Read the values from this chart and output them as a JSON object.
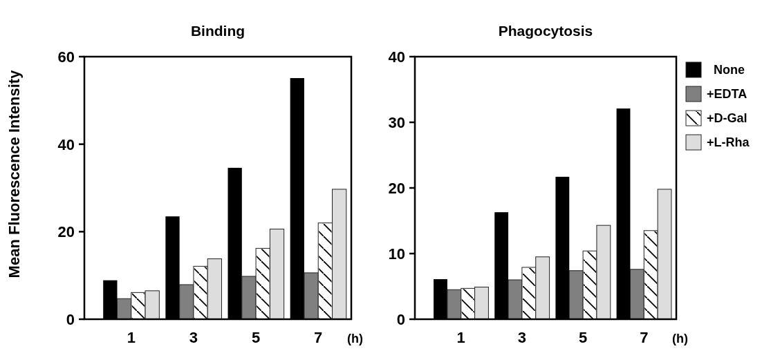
{
  "chart_data": [
    {
      "type": "bar",
      "title": "Binding",
      "ylabel": "Mean Fluorescence Intensity",
      "xlabel": "(h)",
      "categories": [
        "1",
        "3",
        "5",
        "7"
      ],
      "ylim": [
        0,
        60
      ],
      "yticks": [
        0,
        20,
        40,
        60
      ],
      "legend": false,
      "series": [
        {
          "color": "#000000",
          "values": [
            8.9,
            23.5,
            34.6,
            55.1
          ]
        },
        {
          "color": "#808080",
          "values": [
            4.7,
            7.9,
            9.8,
            10.6
          ]
        },
        {
          "color": "#ffffff",
          "values": [
            6.1,
            12.1,
            16.2,
            22.0
          ]
        },
        {
          "color": "#dddddd",
          "values": [
            6.5,
            13.8,
            20.6,
            29.7
          ]
        }
      ]
    },
    {
      "type": "bar",
      "title": "Phagocytosis",
      "xlabel": "(h)",
      "categories": [
        "1",
        "3",
        "5",
        "7"
      ],
      "ylim": [
        0,
        40
      ],
      "yticks": [
        0,
        10,
        20,
        30,
        40
      ],
      "legend": "right",
      "series": [
        {
          "name": "None",
          "color": "#000000",
          "values": [
            6.1,
            16.3,
            21.7,
            32.1
          ]
        },
        {
          "name": "+EDTA",
          "color": "#808080",
          "values": [
            4.5,
            6.0,
            7.4,
            7.6
          ]
        },
        {
          "name": "+D-Gal",
          "color": "#ffffff",
          "values": [
            4.7,
            7.9,
            10.4,
            13.5
          ]
        },
        {
          "name": "+L-Rha",
          "color": "#dddddd",
          "values": [
            4.9,
            9.5,
            14.3,
            19.8
          ]
        }
      ]
    }
  ]
}
